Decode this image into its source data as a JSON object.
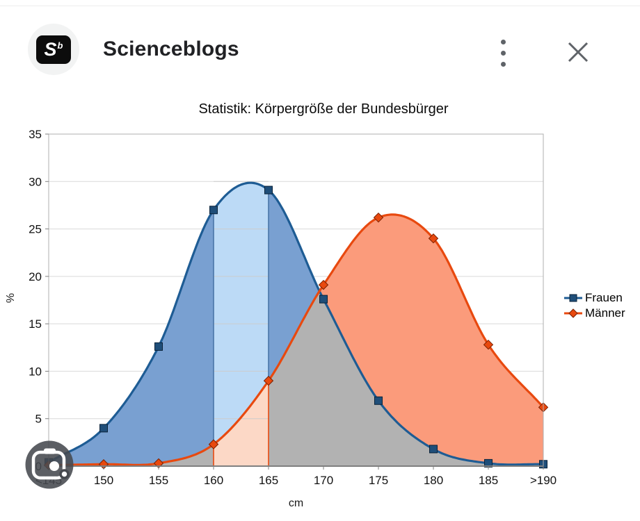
{
  "header": {
    "title": "Scienceblogs",
    "logo": {
      "letter": "S",
      "superscript": "b"
    },
    "icons": {
      "more_options": "kebab-menu-icon",
      "close": "close-x-icon"
    },
    "icon_color": "#5f6368"
  },
  "lens_button": {
    "icon": "camera-lens-icon",
    "background": "#45484d"
  },
  "chart_data": {
    "type": "area",
    "title": "Statistik: Körpergröße der Bundesbürger",
    "xlabel": "cm",
    "ylabel": "%",
    "ylim": [
      0,
      35
    ],
    "yticks": [
      0,
      5,
      10,
      15,
      20,
      25,
      30,
      35
    ],
    "grid": true,
    "legend_position": "right",
    "categories": [
      "<145",
      "150",
      "155",
      "160",
      "165",
      "170",
      "175",
      "180",
      "185",
      ">190"
    ],
    "series": [
      {
        "name": "Frauen",
        "marker": "square",
        "line_color": "#1E5C94",
        "fill_color": "#79A0D1",
        "marker_color": "#1F4E79",
        "values": [
          0.4,
          4,
          12.6,
          27,
          29.1,
          17.6,
          6.9,
          1.8,
          0.3,
          0.2
        ]
      },
      {
        "name": "Männer",
        "marker": "diamond",
        "line_color": "#E8490F",
        "fill_color": "#FB9B7B",
        "marker_color": "#E8490F",
        "values": [
          0.1,
          0.2,
          0.3,
          2.3,
          9,
          19.1,
          26.2,
          24,
          12.8,
          6.2
        ]
      }
    ],
    "overlap_fill_color": "#B2B2B2",
    "highlight_band": {
      "from_category": "160",
      "to_category": "165",
      "frauen_fill": "#BCDAF6",
      "maenner_fill": "#FCD8C6",
      "edge_color_top": "#4A76A8",
      "edge_color_bottom": "#E8490F"
    }
  }
}
